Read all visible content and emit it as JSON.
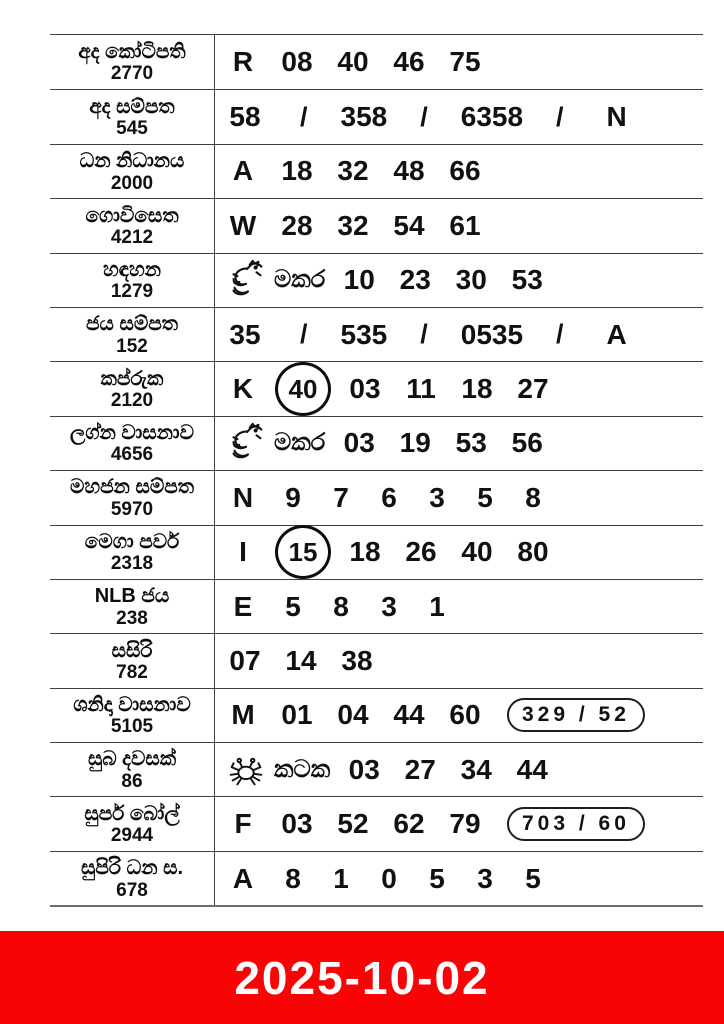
{
  "colors": {
    "line": "#3f3f3f",
    "ink": "#111111",
    "banner_bg": "#f80404",
    "banner_text": "#ffffff"
  },
  "banner": {
    "date": "2025-10-02"
  },
  "table": {
    "rows": [
      {
        "name": "අද කෝටිපති",
        "draw": "2770",
        "items": [
          {
            "t": "letter",
            "v": "R"
          },
          {
            "t": "num",
            "v": "08"
          },
          {
            "t": "num",
            "v": "40"
          },
          {
            "t": "num",
            "v": "46"
          },
          {
            "t": "num",
            "v": "75"
          }
        ]
      },
      {
        "name": "අද සම්පත",
        "draw": "545",
        "items": [
          {
            "t": "num",
            "v": "58"
          },
          {
            "t": "slash",
            "v": "/"
          },
          {
            "t": "num",
            "v": "358"
          },
          {
            "t": "slash",
            "v": "/"
          },
          {
            "t": "num",
            "v": "6358"
          },
          {
            "t": "slash",
            "v": "/"
          },
          {
            "t": "letter",
            "v": "N"
          }
        ]
      },
      {
        "name": "ධන නිධානය",
        "draw": "2000",
        "items": [
          {
            "t": "letter",
            "v": "A"
          },
          {
            "t": "num",
            "v": "18"
          },
          {
            "t": "num",
            "v": "32"
          },
          {
            "t": "num",
            "v": "48"
          },
          {
            "t": "num",
            "v": "66"
          }
        ]
      },
      {
        "name": "ගොවිසෙත",
        "draw": "4212",
        "items": [
          {
            "t": "letter",
            "v": "W"
          },
          {
            "t": "num",
            "v": "28"
          },
          {
            "t": "num",
            "v": "32"
          },
          {
            "t": "num",
            "v": "54"
          },
          {
            "t": "num",
            "v": "61"
          }
        ]
      },
      {
        "name": "හඳහන",
        "draw": "1279",
        "items": [
          {
            "t": "zodiac",
            "icon": "makara-dragon-icon",
            "label": "මකර"
          },
          {
            "t": "num",
            "v": "10"
          },
          {
            "t": "num",
            "v": "23"
          },
          {
            "t": "num",
            "v": "30"
          },
          {
            "t": "num",
            "v": "53"
          }
        ]
      },
      {
        "name": "ජය සම්පත",
        "draw": "152",
        "items": [
          {
            "t": "num",
            "v": "35"
          },
          {
            "t": "slash",
            "v": "/"
          },
          {
            "t": "num",
            "v": "535"
          },
          {
            "t": "slash",
            "v": "/"
          },
          {
            "t": "num",
            "v": "0535"
          },
          {
            "t": "slash",
            "v": "/"
          },
          {
            "t": "letter",
            "v": "A"
          }
        ]
      },
      {
        "name": "කප්රුක",
        "draw": "2120",
        "items": [
          {
            "t": "letter",
            "v": "K"
          },
          {
            "t": "circled",
            "v": "40"
          },
          {
            "t": "num",
            "v": "03"
          },
          {
            "t": "num",
            "v": "11"
          },
          {
            "t": "num",
            "v": "18"
          },
          {
            "t": "num",
            "v": "27"
          }
        ]
      },
      {
        "name": "ලග්න වාසනාව",
        "draw": "4656",
        "items": [
          {
            "t": "zodiac",
            "icon": "makara-dragon-icon",
            "label": "මකර"
          },
          {
            "t": "num",
            "v": "03"
          },
          {
            "t": "num",
            "v": "19"
          },
          {
            "t": "num",
            "v": "53"
          },
          {
            "t": "num",
            "v": "56"
          }
        ]
      },
      {
        "name": "මහජන සම්පත",
        "draw": "5970",
        "items": [
          {
            "t": "letter",
            "v": "N"
          },
          {
            "t": "num",
            "v": "9"
          },
          {
            "t": "num",
            "v": "7"
          },
          {
            "t": "num",
            "v": "6"
          },
          {
            "t": "num",
            "v": "3"
          },
          {
            "t": "num",
            "v": "5"
          },
          {
            "t": "num",
            "v": "8"
          }
        ]
      },
      {
        "name": "මෙගා පවර්",
        "draw": "2318",
        "items": [
          {
            "t": "letter",
            "v": "I"
          },
          {
            "t": "circled",
            "v": "15"
          },
          {
            "t": "num",
            "v": "18"
          },
          {
            "t": "num",
            "v": "26"
          },
          {
            "t": "num",
            "v": "40"
          },
          {
            "t": "num",
            "v": "80"
          }
        ]
      },
      {
        "name": "NLB ජය",
        "draw": "238",
        "items": [
          {
            "t": "letter",
            "v": "E"
          },
          {
            "t": "num",
            "v": "5"
          },
          {
            "t": "num",
            "v": "8"
          },
          {
            "t": "num",
            "v": "3"
          },
          {
            "t": "num",
            "v": "1"
          }
        ]
      },
      {
        "name": "සසිරි",
        "draw": "782",
        "items": [
          {
            "t": "num",
            "v": "07"
          },
          {
            "t": "num",
            "v": "14"
          },
          {
            "t": "num",
            "v": "38"
          }
        ]
      },
      {
        "name": "ශනිදා වාසනාව",
        "draw": "5105",
        "items": [
          {
            "t": "letter",
            "v": "M"
          },
          {
            "t": "num",
            "v": "01"
          },
          {
            "t": "num",
            "v": "04"
          },
          {
            "t": "num",
            "v": "44"
          },
          {
            "t": "num",
            "v": "60"
          },
          {
            "t": "pill",
            "v": "329 / 52"
          }
        ]
      },
      {
        "name": "සුබ දවසක්",
        "draw": "86",
        "items": [
          {
            "t": "zodiac",
            "icon": "kataka-crab-icon",
            "label": "කටක"
          },
          {
            "t": "num",
            "v": "03"
          },
          {
            "t": "num",
            "v": "27"
          },
          {
            "t": "num",
            "v": "34"
          },
          {
            "t": "num",
            "v": "44"
          }
        ]
      },
      {
        "name": "සුපර් බෝල්",
        "draw": "2944",
        "items": [
          {
            "t": "letter",
            "v": "F"
          },
          {
            "t": "num",
            "v": "03"
          },
          {
            "t": "num",
            "v": "52"
          },
          {
            "t": "num",
            "v": "62"
          },
          {
            "t": "num",
            "v": "79"
          },
          {
            "t": "pill",
            "v": "703 / 60"
          }
        ]
      },
      {
        "name": "සුපිරි ධන ස.",
        "draw": "678",
        "items": [
          {
            "t": "letter",
            "v": "A"
          },
          {
            "t": "num",
            "v": "8"
          },
          {
            "t": "num",
            "v": "1"
          },
          {
            "t": "num",
            "v": "0"
          },
          {
            "t": "num",
            "v": "5"
          },
          {
            "t": "num",
            "v": "3"
          },
          {
            "t": "num",
            "v": "5"
          }
        ]
      }
    ]
  }
}
